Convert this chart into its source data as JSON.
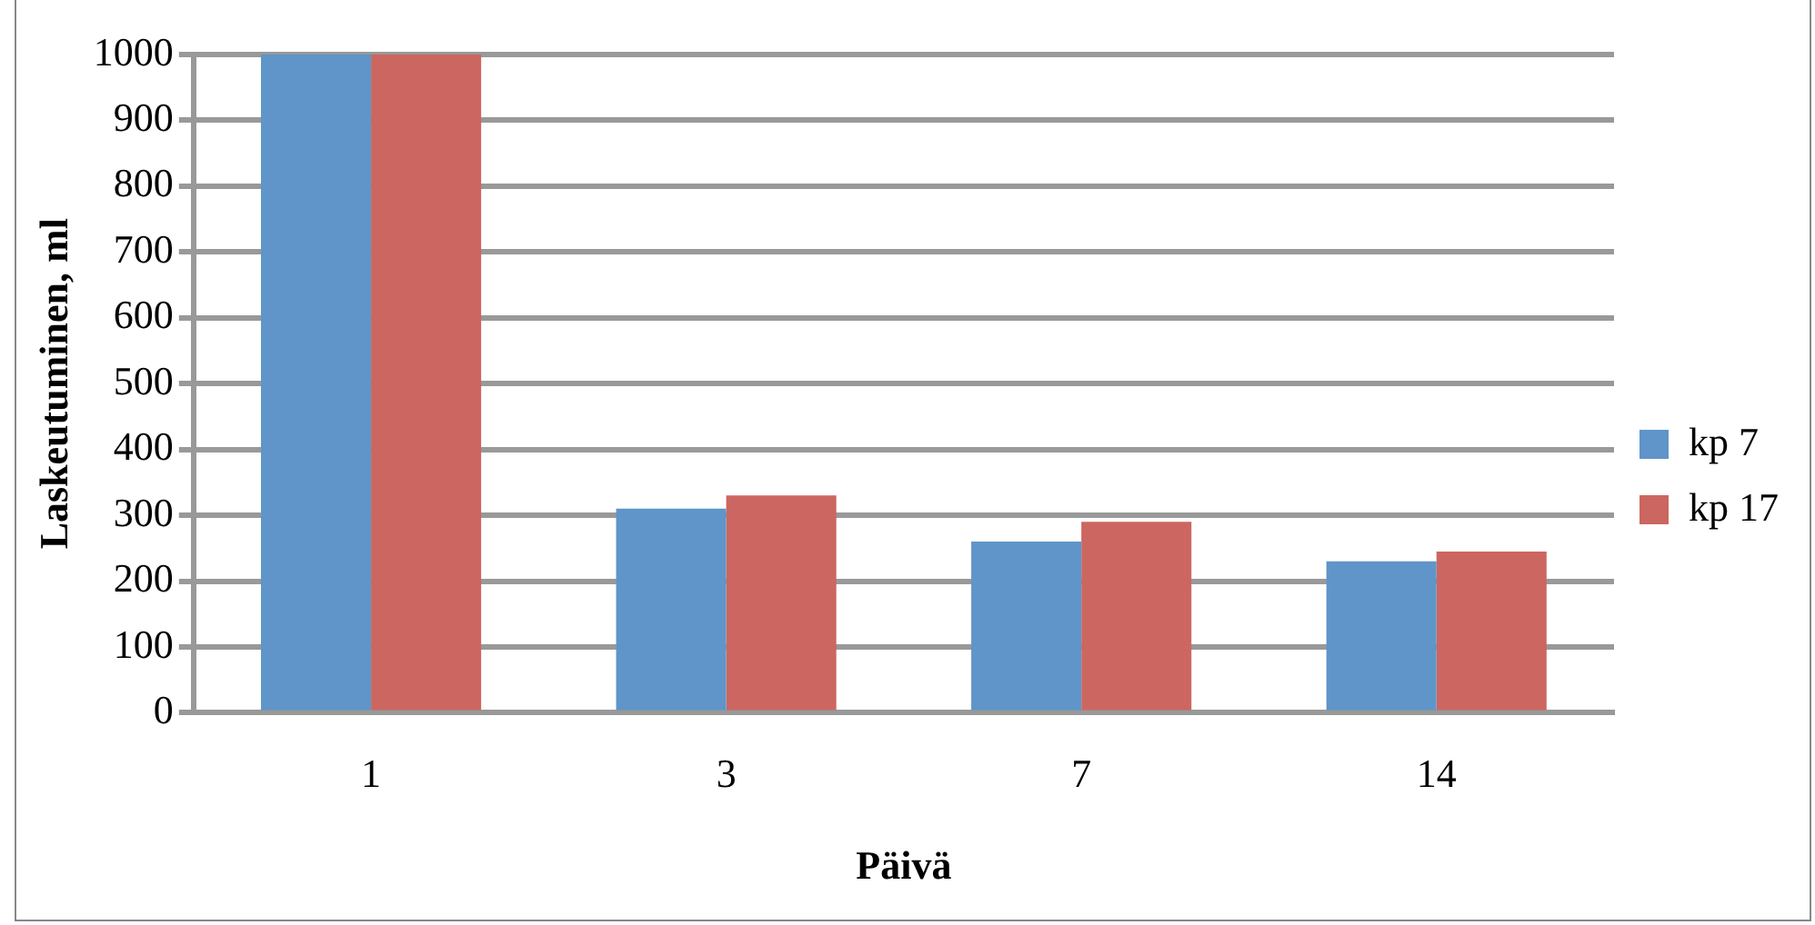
{
  "chart_data": {
    "type": "bar",
    "xlabel": "Päivä",
    "ylabel": "Laskeutuminen, ml",
    "categories": [
      "1",
      "3",
      "7",
      "14"
    ],
    "series": [
      {
        "name": "kp 7",
        "color": "#5f95c8",
        "values": [
          1000,
          310,
          260,
          230
        ]
      },
      {
        "name": "kp 17",
        "color": "#cc6660",
        "values": [
          1000,
          330,
          290,
          245
        ]
      }
    ],
    "ylim": [
      0,
      1000
    ],
    "yticks": [
      0,
      100,
      200,
      300,
      400,
      500,
      600,
      700,
      800,
      900,
      1000
    ],
    "grid": "y",
    "legend": "right"
  }
}
